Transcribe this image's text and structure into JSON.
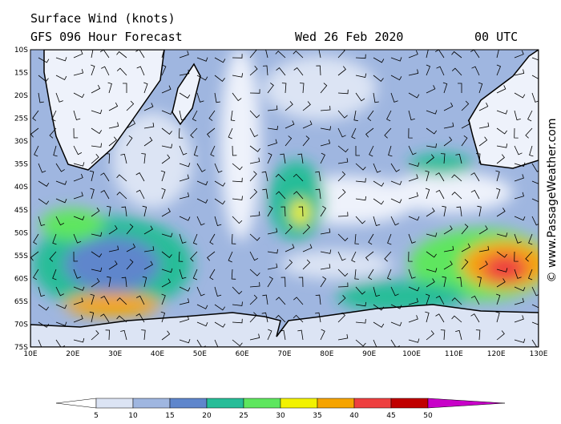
{
  "header": {
    "title": "Surface Wind (knots)",
    "subtitle": "GFS 096 Hour Forecast",
    "date": "Wed 26 Feb 2020",
    "time": "00 UTC"
  },
  "map": {
    "lat_labels": [
      "10S",
      "15S",
      "20S",
      "25S",
      "30S",
      "35S",
      "40S",
      "45S",
      "50S",
      "55S",
      "60S",
      "65S",
      "70S",
      "75S"
    ],
    "lon_labels": [
      "10E",
      "20E",
      "30E",
      "40E",
      "50E",
      "60E",
      "70E",
      "80E",
      "90E",
      "100E",
      "110E",
      "120E",
      "130E"
    ]
  },
  "legend": {
    "labels": [
      5,
      10,
      15,
      20,
      25,
      30,
      35,
      40,
      45,
      50
    ],
    "colors": [
      "#ffffff",
      "#dce4f4",
      "#9fb6e0",
      "#5f86cc",
      "#27bd98",
      "#5ee65e",
      "#f2f200",
      "#f6a400",
      "#ee4040",
      "#c00000",
      "#c800c8"
    ]
  },
  "credit": "© www.PassageWeather.com"
}
